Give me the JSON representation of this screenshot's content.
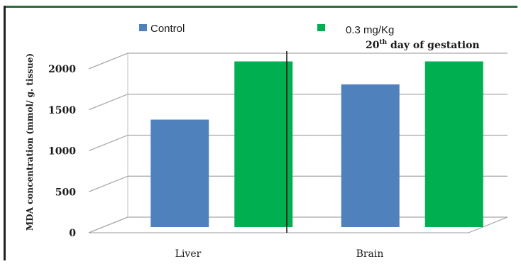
{
  "chart_data": {
    "type": "bar",
    "categories": [
      "Liver",
      "Brain"
    ],
    "series": [
      {
        "name": "Control",
        "values": [
          1190,
          1620
        ],
        "color": "#4f81bd"
      },
      {
        "name": "0.3 mg/Kg",
        "values": [
          1900,
          1900
        ],
        "color": "#00b050"
      }
    ],
    "ylabel": "MDA concentration (mmol/ g. tissue)",
    "xlabel": "",
    "yticks": [
      0,
      500,
      1000,
      1500,
      2000
    ],
    "ylim": [
      0,
      2000
    ],
    "annotation": {
      "base": "20",
      "sup": "th",
      "rest": " day of gestation"
    },
    "grid": true,
    "legend_position": "top",
    "frame_color": "#2e6b3e"
  }
}
